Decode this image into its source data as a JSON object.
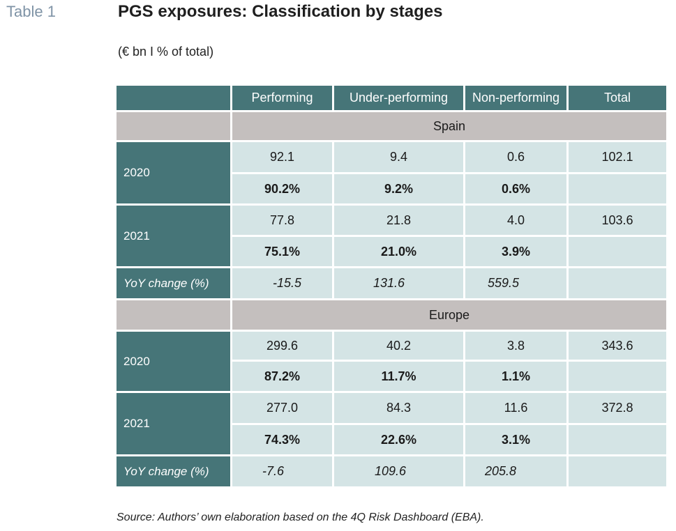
{
  "page": {
    "table_label": "Table 1",
    "title": "PGS exposures: Classification by stages",
    "units": "(€ bn I % of total)",
    "source": "Source: Authors’ own elaboration based on the 4Q Risk Dashboard (EBA)."
  },
  "table": {
    "headers": [
      "Performing",
      "Under-performing",
      "Non-performing",
      "Total"
    ],
    "sections": [
      {
        "region": "Spain",
        "years": [
          {
            "year": "2020",
            "values": [
              "92.1",
              "9.4",
              "0.6",
              "102.1"
            ],
            "pct": [
              "90.2%",
              "9.2%",
              "0.6%",
              ""
            ]
          },
          {
            "year": "2021",
            "values": [
              "77.8",
              "21.8",
              "4.0",
              "103.6"
            ],
            "pct": [
              "75.1%",
              "21.0%",
              "3.9%",
              ""
            ]
          }
        ],
        "yoy_label": "YoY change (%)",
        "yoy": [
          "-15.5",
          "131.6",
          "559.5",
          ""
        ]
      },
      {
        "region": "Europe",
        "years": [
          {
            "year": "2020",
            "values": [
              "299.6",
              "40.2",
              "3.8",
              "343.6"
            ],
            "pct": [
              "87.2%",
              "11.7%",
              "1.1%",
              ""
            ]
          },
          {
            "year": "2021",
            "values": [
              "277.0",
              "84.3",
              "11.6",
              "372.8"
            ],
            "pct": [
              "74.3%",
              "22.6%",
              "3.1%",
              ""
            ]
          }
        ],
        "yoy_label": "YoY change (%)",
        "yoy": [
          "-7.6",
          "109.6",
          "205.8",
          ""
        ]
      }
    ]
  }
}
